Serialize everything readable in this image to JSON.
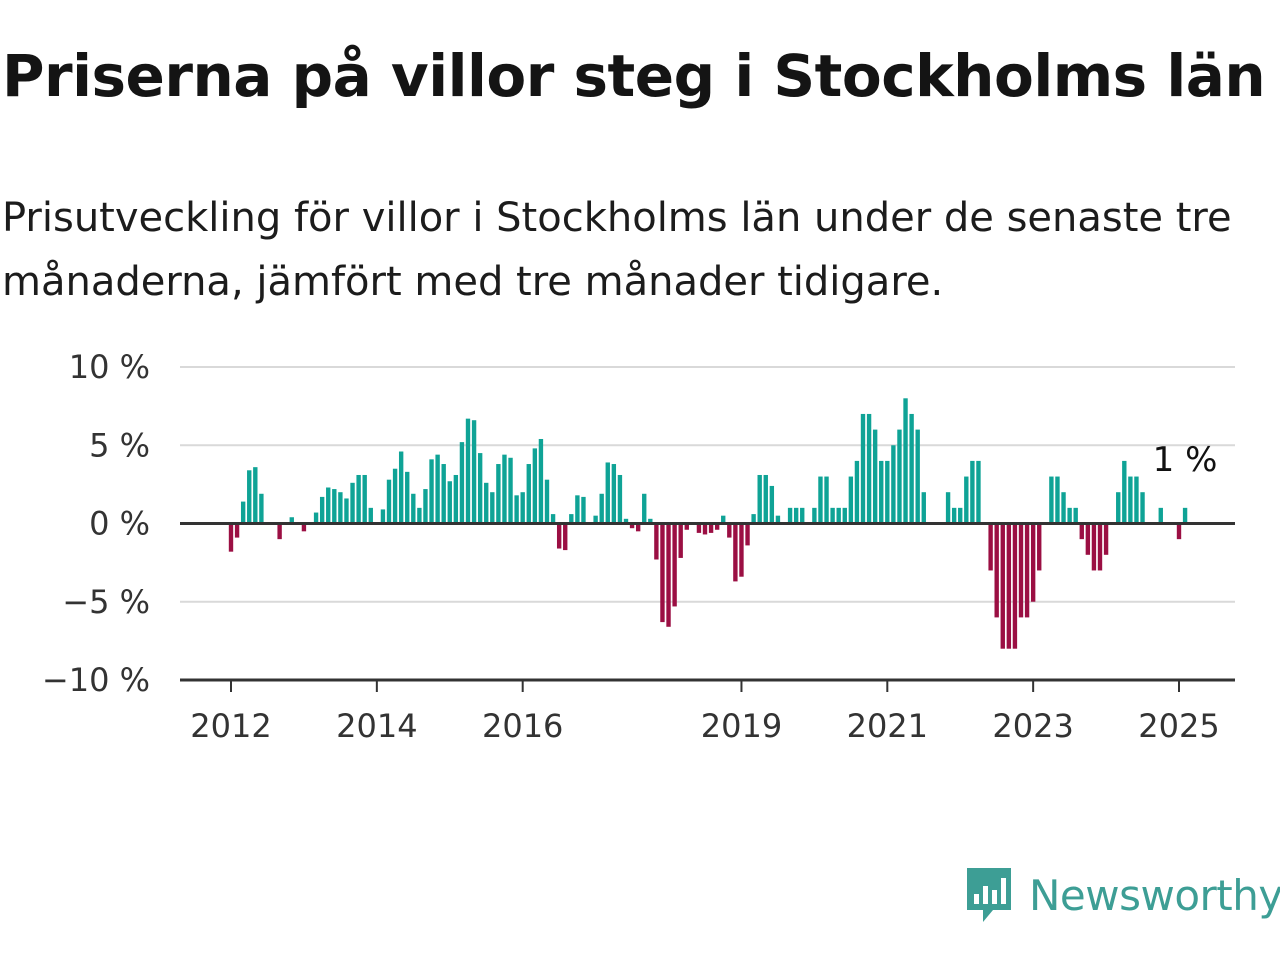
{
  "header": {
    "title": "Priserna på villor steg i Stockholms län",
    "subtitle": "Prisutveckling för villor i Stockholms län under de senaste tre månaderna, jämfört med tre månader tidigare."
  },
  "brand": {
    "name": "Newsworthy",
    "icon": "newsworthy-logo-icon",
    "color": "#3d9e95"
  },
  "colors": {
    "positive": "#0fa396",
    "negative": "#9b0f43",
    "grid": "#d9d9d9",
    "zero_line": "#333333"
  },
  "chart_data": {
    "type": "bar",
    "x_start": "2011-12",
    "x_end": "2025-06",
    "x_ticks": [
      {
        "label": "2012",
        "date": "2012-01"
      },
      {
        "label": "2014",
        "date": "2014-01"
      },
      {
        "label": "2016",
        "date": "2016-01"
      },
      {
        "label": "2019",
        "date": "2019-01"
      },
      {
        "label": "2021",
        "date": "2021-01"
      },
      {
        "label": "2023",
        "date": "2023-01"
      },
      {
        "label": "2025",
        "date": "2025-01"
      }
    ],
    "y_ticks": [
      {
        "label": "10 %",
        "value": 10
      },
      {
        "label": "5 %",
        "value": 5
      },
      {
        "label": "0 %",
        "value": 0
      },
      {
        "label": "−5 %",
        "value": -5
      },
      {
        "label": "−10 %",
        "value": -10
      }
    ],
    "ylim": [
      -10,
      10
    ],
    "grid": true,
    "annotation": {
      "text": "1 %",
      "date": "2025-01",
      "value": 1
    },
    "series": [
      {
        "values": [
          [
            "2012-01",
            -1.8
          ],
          [
            "2012-02",
            -0.9
          ],
          [
            "2012-03",
            1.4
          ],
          [
            "2012-04",
            3.4
          ],
          [
            "2012-05",
            3.6
          ],
          [
            "2012-06",
            1.9
          ],
          [
            "2012-07",
            0
          ],
          [
            "2012-08",
            0
          ],
          [
            "2012-09",
            -1.0
          ],
          [
            "2012-10",
            0
          ],
          [
            "2012-11",
            0.4
          ],
          [
            "2012-12",
            0
          ],
          [
            "2013-01",
            -0.5
          ],
          [
            "2013-02",
            0
          ],
          [
            "2013-03",
            0.7
          ],
          [
            "2013-04",
            1.7
          ],
          [
            "2013-05",
            2.3
          ],
          [
            "2013-06",
            2.2
          ],
          [
            "2013-07",
            2.0
          ],
          [
            "2013-08",
            1.6
          ],
          [
            "2013-09",
            2.6
          ],
          [
            "2013-10",
            3.1
          ],
          [
            "2013-11",
            3.1
          ],
          [
            "2013-12",
            1.0
          ],
          [
            "2014-01",
            0
          ],
          [
            "2014-02",
            0.9
          ],
          [
            "2014-03",
            2.8
          ],
          [
            "2014-04",
            3.5
          ],
          [
            "2014-05",
            4.6
          ],
          [
            "2014-06",
            3.3
          ],
          [
            "2014-07",
            1.9
          ],
          [
            "2014-08",
            1.0
          ],
          [
            "2014-09",
            2.2
          ],
          [
            "2014-10",
            4.1
          ],
          [
            "2014-11",
            4.4
          ],
          [
            "2014-12",
            3.8
          ],
          [
            "2015-01",
            2.7
          ],
          [
            "2015-02",
            3.1
          ],
          [
            "2015-03",
            5.2
          ],
          [
            "2015-04",
            6.7
          ],
          [
            "2015-05",
            6.6
          ],
          [
            "2015-06",
            4.5
          ],
          [
            "2015-07",
            2.6
          ],
          [
            "2015-08",
            2.0
          ],
          [
            "2015-09",
            3.8
          ],
          [
            "2015-10",
            4.4
          ],
          [
            "2015-11",
            4.2
          ],
          [
            "2015-12",
            1.8
          ],
          [
            "2016-01",
            2.0
          ],
          [
            "2016-02",
            3.8
          ],
          [
            "2016-03",
            4.8
          ],
          [
            "2016-04",
            5.4
          ],
          [
            "2016-05",
            2.8
          ],
          [
            "2016-06",
            0.6
          ],
          [
            "2016-07",
            -1.6
          ],
          [
            "2016-08",
            -1.7
          ],
          [
            "2016-09",
            0.6
          ],
          [
            "2016-10",
            1.8
          ],
          [
            "2016-11",
            1.7
          ],
          [
            "2016-12",
            0
          ],
          [
            "2017-01",
            0.5
          ],
          [
            "2017-02",
            1.9
          ],
          [
            "2017-03",
            3.9
          ],
          [
            "2017-04",
            3.8
          ],
          [
            "2017-05",
            3.1
          ],
          [
            "2017-06",
            0.3
          ],
          [
            "2017-07",
            -0.3
          ],
          [
            "2017-08",
            -0.5
          ],
          [
            "2017-09",
            1.9
          ],
          [
            "2017-10",
            0.3
          ],
          [
            "2017-11",
            -2.3
          ],
          [
            "2017-12",
            -6.3
          ],
          [
            "2018-01",
            -6.6
          ],
          [
            "2018-02",
            -5.3
          ],
          [
            "2018-03",
            -2.2
          ],
          [
            "2018-04",
            -0.4
          ],
          [
            "2018-05",
            0
          ],
          [
            "2018-06",
            -0.6
          ],
          [
            "2018-07",
            -0.7
          ],
          [
            "2018-08",
            -0.6
          ],
          [
            "2018-09",
            -0.4
          ],
          [
            "2018-10",
            0.5
          ],
          [
            "2018-11",
            -0.9
          ],
          [
            "2018-12",
            -3.7
          ],
          [
            "2019-01",
            -3.4
          ],
          [
            "2019-02",
            -1.4
          ],
          [
            "2019-03",
            0.6
          ],
          [
            "2019-04",
            3.1
          ],
          [
            "2019-05",
            3.1
          ],
          [
            "2019-06",
            2.4
          ],
          [
            "2019-07",
            0.5
          ],
          [
            "2019-08",
            0
          ],
          [
            "2019-09",
            1.0
          ],
          [
            "2019-10",
            1.0
          ],
          [
            "2019-11",
            1.0
          ],
          [
            "2019-12",
            0
          ],
          [
            "2020-01",
            1.0
          ],
          [
            "2020-02",
            3.0
          ],
          [
            "2020-03",
            3.0
          ],
          [
            "2020-04",
            1.0
          ],
          [
            "2020-05",
            1.0
          ],
          [
            "2020-06",
            1.0
          ],
          [
            "2020-07",
            3.0
          ],
          [
            "2020-08",
            4.0
          ],
          [
            "2020-09",
            7.0
          ],
          [
            "2020-10",
            7.0
          ],
          [
            "2020-11",
            6.0
          ],
          [
            "2020-12",
            4.0
          ],
          [
            "2021-01",
            4.0
          ],
          [
            "2021-02",
            5.0
          ],
          [
            "2021-03",
            6.0
          ],
          [
            "2021-04",
            8.0
          ],
          [
            "2021-05",
            7.0
          ],
          [
            "2021-06",
            6.0
          ],
          [
            "2021-07",
            2.0
          ],
          [
            "2021-08",
            0
          ],
          [
            "2021-09",
            0
          ],
          [
            "2021-10",
            0
          ],
          [
            "2021-11",
            2.0
          ],
          [
            "2021-12",
            1.0
          ],
          [
            "2022-01",
            1.0
          ],
          [
            "2022-02",
            3.0
          ],
          [
            "2022-03",
            4.0
          ],
          [
            "2022-04",
            4.0
          ],
          [
            "2022-05",
            0
          ],
          [
            "2022-06",
            -3.0
          ],
          [
            "2022-07",
            -6.0
          ],
          [
            "2022-08",
            -8.0
          ],
          [
            "2022-09",
            -8.0
          ],
          [
            "2022-10",
            -8.0
          ],
          [
            "2022-11",
            -6.0
          ],
          [
            "2022-12",
            -6.0
          ],
          [
            "2023-01",
            -5.0
          ],
          [
            "2023-02",
            -3.0
          ],
          [
            "2023-03",
            0
          ],
          [
            "2023-04",
            3.0
          ],
          [
            "2023-05",
            3.0
          ],
          [
            "2023-06",
            2.0
          ],
          [
            "2023-07",
            1.0
          ],
          [
            "2023-08",
            1.0
          ],
          [
            "2023-09",
            -1.0
          ],
          [
            "2023-10",
            -2.0
          ],
          [
            "2023-11",
            -3.0
          ],
          [
            "2023-12",
            -3.0
          ],
          [
            "2024-01",
            -2.0
          ],
          [
            "2024-02",
            0
          ],
          [
            "2024-03",
            2.0
          ],
          [
            "2024-04",
            4.0
          ],
          [
            "2024-05",
            3.0
          ],
          [
            "2024-06",
            3.0
          ],
          [
            "2024-07",
            2.0
          ],
          [
            "2024-08",
            0
          ],
          [
            "2024-09",
            0
          ],
          [
            "2024-10",
            1.0
          ],
          [
            "2024-11",
            0
          ],
          [
            "2024-12",
            0
          ],
          [
            "2025-01",
            -1.0
          ],
          [
            "2025-02",
            1.0
          ]
        ]
      }
    ]
  }
}
